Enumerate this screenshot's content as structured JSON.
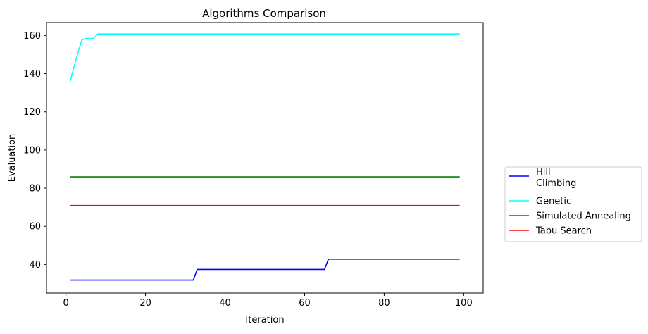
{
  "chart_data": {
    "type": "line",
    "title": "Algorithms Comparison",
    "xlabel": "Iteration",
    "ylabel": "Evaluation",
    "xlim": [
      -4.9,
      104.9
    ],
    "ylim": [
      25.0,
      166.8
    ],
    "xticks": [
      0,
      20,
      40,
      60,
      80,
      100
    ],
    "yticks": [
      40,
      60,
      80,
      100,
      120,
      140,
      160
    ],
    "grid": false,
    "legend_position": "outside-right",
    "series": [
      {
        "name": "Hill\nClimbing",
        "color": "#0000ff",
        "points": [
          [
            1,
            31.8
          ],
          [
            32,
            31.8
          ],
          [
            33,
            37.4
          ],
          [
            65,
            37.4
          ],
          [
            66,
            42.8
          ],
          [
            99,
            42.8
          ]
        ]
      },
      {
        "name": "Genetic",
        "color": "#00ffff",
        "points": [
          [
            1,
            135.5
          ],
          [
            2,
            143.5
          ],
          [
            3,
            151.0
          ],
          [
            4,
            157.7
          ],
          [
            5,
            158.5
          ],
          [
            6,
            158.5
          ],
          [
            7,
            158.5
          ],
          [
            8,
            160.8
          ],
          [
            99,
            160.8
          ]
        ]
      },
      {
        "name": "Simulated Annealing",
        "color": "#008000",
        "points": [
          [
            1,
            85.9
          ],
          [
            99,
            85.9
          ]
        ]
      },
      {
        "name": "Tabu Search",
        "color": "#ff0000",
        "points": [
          [
            1,
            70.9
          ],
          [
            99,
            70.9
          ]
        ]
      }
    ]
  }
}
